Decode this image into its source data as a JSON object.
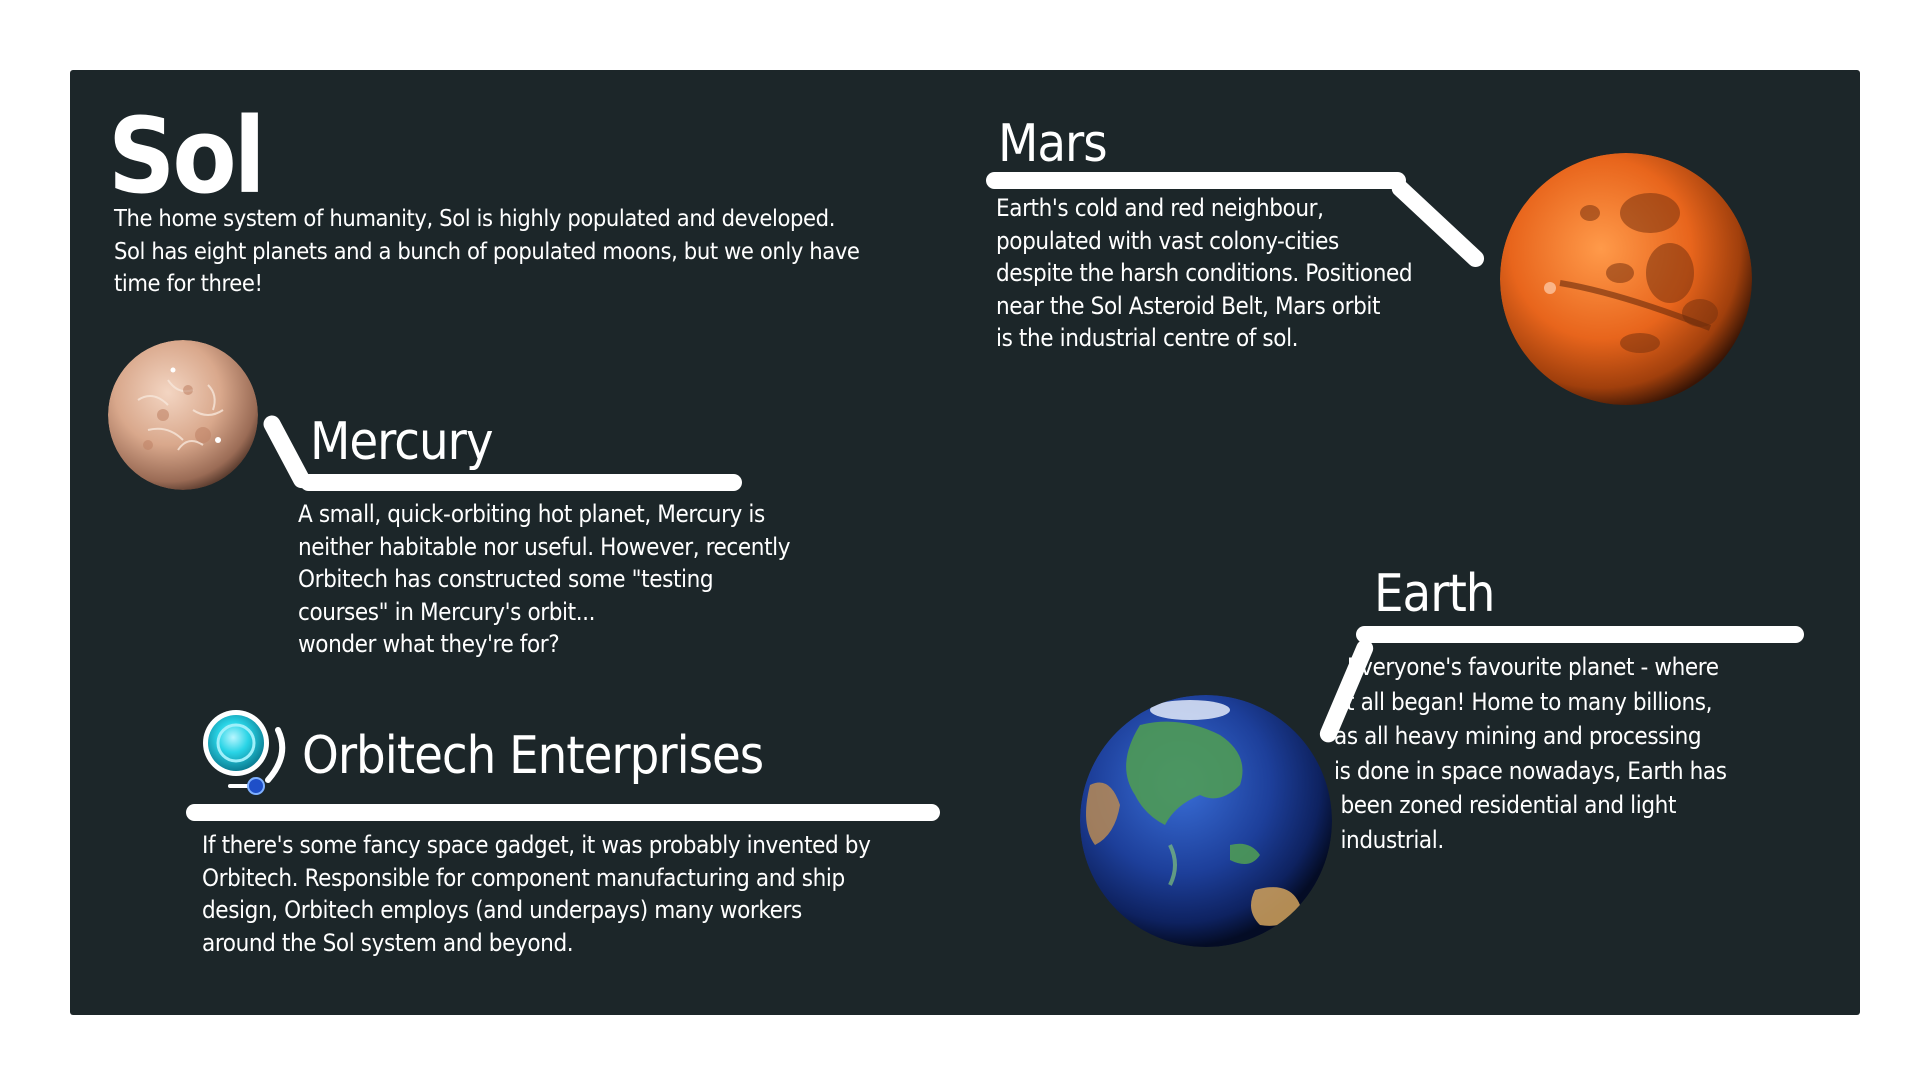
{
  "sol": {
    "title": "Sol",
    "description": "The home system of humanity, Sol is highly populated and developed.\nSol has eight planets and a bunch of populated moons, but we only have\ntime for three!"
  },
  "mercury": {
    "title": "Mercury",
    "description": "A small, quick-orbiting hot planet, Mercury is\nneither habitable nor useful. However, recently\nOrbitech has constructed some \"testing\ncourses\" in Mercury's orbit...\nwonder what they're for?"
  },
  "orbitech": {
    "title": "Orbitech Enterprises",
    "description": "If there's some fancy space gadget, it was probably invented by\nOrbitech. Responsible for component manufacturing and ship\ndesign, Orbitech employs (and underpays) many workers\naround the Sol system and beyond."
  },
  "mars": {
    "title": "Mars",
    "description": "Earth's cold and red neighbour,\npopulated with vast colony-cities\ndespite the harsh conditions. Positioned\nnear the Sol Asteroid Belt, Mars orbit\nis the industrial centre of sol."
  },
  "earth": {
    "title": "Earth",
    "description": "  Everyone's favourite planet - where\n it all began! Home to many billions,\nas all heavy mining and processing\nis done in space nowadays, Earth has\n been zoned residential and light\n industrial."
  },
  "icons": {
    "mercury": "mercury-planet-icon",
    "mars": "mars-planet-icon",
    "earth": "earth-planet-icon",
    "orbitech": "orbitech-logo-icon"
  },
  "colors": {
    "background": "#1c2629",
    "text": "#ffffff",
    "mars": "#e8651c",
    "earth_ocean": "#1d3f9a",
    "mercury": "#d9a88c",
    "orbitech": "#29d4e6"
  }
}
